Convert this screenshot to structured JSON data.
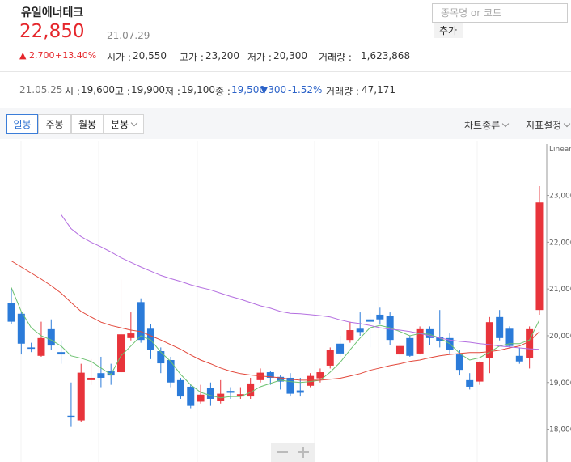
{
  "header": {
    "name": "유일에너테크",
    "price": "22,850",
    "date": "21.07.29",
    "change": "▲ 2,700",
    "change_pct": "+13.40%",
    "stats": [
      {
        "label": "시가 :",
        "value": "20,550"
      },
      {
        "label": "고가 :",
        "value": "23,200"
      },
      {
        "label": "저가 :",
        "value": "20,300"
      },
      {
        "label": "거래량 :",
        "value": "1,623,868"
      }
    ]
  },
  "search": {
    "placeholder": "종목명 or 코드",
    "button": "추가"
  },
  "selected_day": {
    "date": "21.05.25",
    "items": [
      {
        "label": "시 :",
        "value": "19,600"
      },
      {
        "label": "고 :",
        "value": "19,900"
      },
      {
        "label": "저 :",
        "value": "19,100"
      },
      {
        "label": "종 :",
        "value": "19,500"
      }
    ],
    "change": "▼300",
    "change_pct": "-1.52%",
    "volume_label": "거래량 :",
    "volume": "47,171"
  },
  "toolbar": {
    "periods": [
      "일봉",
      "주봉",
      "월봉",
      "분봉"
    ],
    "menus": [
      "차트종류",
      "지표설정"
    ]
  },
  "chart_data": {
    "type": "candlestick",
    "scale_label": "Linear",
    "up_color": "#e8343b",
    "down_color": "#2b7bd9",
    "open": [
      20700,
      20470,
      19750,
      19570,
      20140,
      19650,
      18290,
      18190,
      19050,
      19200,
      19250,
      19220,
      19950,
      20720,
      20150,
      19670,
      19480,
      19050,
      18910,
      18590,
      18880,
      18600,
      18820,
      18700,
      18700,
      19050,
      19220,
      19120,
      19100,
      18830,
      18930,
      19090,
      19360,
      19830,
      19910,
      20150,
      20350,
      20450,
      20430,
      19600,
      19950,
      19620,
      20140,
      19970,
      19950,
      19600,
      19050,
      19020,
      19520,
      20400,
      20150,
      19570,
      19520,
      20550
    ],
    "high": [
      21000,
      20500,
      19850,
      20300,
      20350,
      19900,
      19000,
      19400,
      19500,
      19550,
      19400,
      21200,
      20500,
      20800,
      20250,
      19750,
      19550,
      19100,
      18950,
      18950,
      19000,
      19050,
      18900,
      18900,
      19100,
      19300,
      19250,
      19150,
      19200,
      19100,
      19200,
      19300,
      19750,
      20000,
      20300,
      20500,
      20500,
      20600,
      20500,
      19850,
      20000,
      20200,
      20200,
      20550,
      20050,
      19700,
      19200,
      19450,
      20400,
      20550,
      20200,
      19750,
      20200,
      23200
    ],
    "low": [
      20250,
      19600,
      19650,
      19550,
      19700,
      19400,
      18050,
      18150,
      18950,
      18900,
      18950,
      19200,
      19900,
      19850,
      19500,
      19200,
      18900,
      18650,
      18450,
      18550,
      18500,
      18550,
      18650,
      18650,
      18650,
      19000,
      18950,
      18850,
      18700,
      18700,
      18900,
      19000,
      19300,
      19550,
      19850,
      20000,
      19750,
      20250,
      19800,
      19300,
      19550,
      19600,
      19800,
      19750,
      19600,
      19150,
      18850,
      18950,
      19200,
      19900,
      19750,
      19400,
      19300,
      20450
    ],
    "close": [
      20300,
      19830,
      19720,
      19950,
      19790,
      19600,
      18250,
      19210,
      19100,
      19100,
      19150,
      20030,
      20050,
      19910,
      19700,
      19410,
      19000,
      18700,
      18500,
      18740,
      18650,
      18760,
      18780,
      18750,
      18980,
      19210,
      19100,
      19020,
      18760,
      18780,
      19140,
      19220,
      19690,
      19620,
      20120,
      20080,
      20300,
      20350,
      19910,
      19780,
      19570,
      20140,
      19950,
      19880,
      19700,
      19270,
      18910,
      19430,
      20290,
      19950,
      19780,
      19450,
      20140,
      22850
    ],
    "series": [
      {
        "color": "#6cc16f",
        "values": [
          21030,
          20520,
          20170,
          20000,
          19910,
          19780,
          19570,
          19520,
          19450,
          19310,
          19170,
          19570,
          19780,
          20000,
          19910,
          19650,
          19450,
          19170,
          18950,
          18790,
          18720,
          18670,
          18700,
          18700,
          18790,
          18910,
          18980,
          19050,
          19020,
          19000,
          19020,
          19050,
          19220,
          19430,
          19700,
          19950,
          20170,
          20220,
          20170,
          20090,
          20000,
          20050,
          20030,
          19950,
          19830,
          19620,
          19480,
          19530,
          19650,
          19780,
          19830,
          19830,
          19910,
          20340
        ]
      },
      {
        "color": "#e2473a",
        "values": [
          21600,
          21470,
          21340,
          21210,
          21070,
          20910,
          20710,
          20520,
          20400,
          20290,
          20220,
          20170,
          20120,
          20090,
          20000,
          19910,
          19810,
          19710,
          19590,
          19480,
          19400,
          19310,
          19240,
          19190,
          19160,
          19140,
          19120,
          19100,
          19070,
          19050,
          19050,
          19050,
          19070,
          19090,
          19140,
          19190,
          19260,
          19310,
          19360,
          19400,
          19450,
          19480,
          19530,
          19570,
          19600,
          19620,
          19640,
          19640,
          19660,
          19690,
          19740,
          19780,
          19880,
          20090
        ]
      },
      {
        "color": "#b46fe0",
        "values": [
          null,
          null,
          null,
          null,
          null,
          22590,
          22290,
          22120,
          22000,
          21900,
          21790,
          21670,
          21570,
          21470,
          21380,
          21290,
          21220,
          21160,
          21090,
          21030,
          20980,
          20910,
          20840,
          20780,
          20710,
          20640,
          20590,
          20520,
          20480,
          20470,
          20450,
          20430,
          20400,
          20340,
          20290,
          20260,
          20220,
          20170,
          20140,
          20120,
          20090,
          20050,
          20000,
          19950,
          19910,
          19880,
          19860,
          19830,
          19810,
          19780,
          19760,
          19740,
          19720,
          19710
        ]
      }
    ],
    "ylim": [
      17300,
      24100
    ],
    "yticks": [
      {
        "value": 18000,
        "label": "18,000"
      },
      {
        "value": 19000,
        "label": "19,000"
      },
      {
        "value": 20000,
        "label": "20,000"
      },
      {
        "value": 21000,
        "label": "21,000"
      },
      {
        "value": 22000,
        "label": "22,000"
      },
      {
        "value": 23000,
        "label": "23,000"
      }
    ]
  }
}
